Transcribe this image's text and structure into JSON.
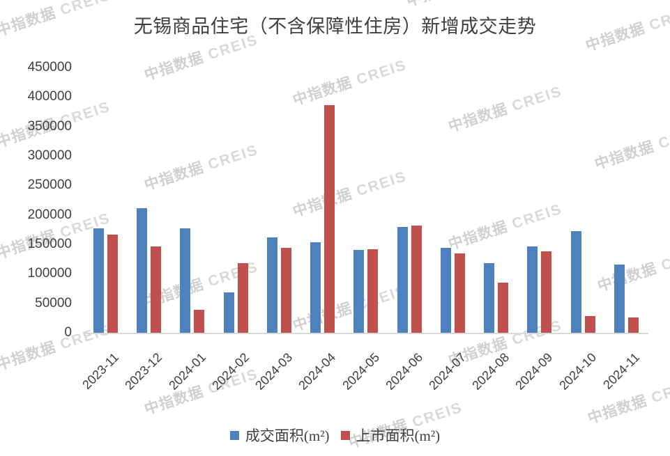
{
  "watermark": {
    "text_cn": "中指数据",
    "text_en": "CREIS"
  },
  "chart_data": {
    "type": "bar",
    "title": "无锡商品住宅（不含保障性住房）新增成交走势",
    "xlabel": "",
    "ylabel": "",
    "categories": [
      "2023-11",
      "2023-12",
      "2024-01",
      "2024-02",
      "2024-03",
      "2024-04",
      "2024-05",
      "2024-06",
      "2024-07",
      "2024-08",
      "2024-09",
      "2024-10",
      "2024-11"
    ],
    "series": [
      {
        "name": "成交面积(m²)",
        "color": "#4F81BD",
        "values": [
          177000,
          211000,
          177000,
          68000,
          162000,
          153000,
          140000,
          179000,
          144000,
          118000,
          146000,
          173000,
          116000
        ]
      },
      {
        "name": "上市面积(m²)",
        "color": "#C0504D",
        "values": [
          167000,
          146000,
          39000,
          118000,
          144000,
          386000,
          142000,
          182000,
          135000,
          85000,
          138000,
          28000,
          26000
        ]
      }
    ],
    "ylim": [
      0,
      450000
    ],
    "ytick_step": 50000,
    "yticks": [
      0,
      50000,
      100000,
      150000,
      200000,
      250000,
      300000,
      350000,
      400000,
      450000
    ],
    "grid": false,
    "legend_position": "bottom",
    "axis_line_color": "#D9D9D9",
    "text_color": "#404040"
  },
  "legend": {
    "items": [
      {
        "label": "成交面积(m²)",
        "color": "#4F81BD"
      },
      {
        "label": "上市面积(m²)",
        "color": "#C0504D"
      }
    ]
  }
}
